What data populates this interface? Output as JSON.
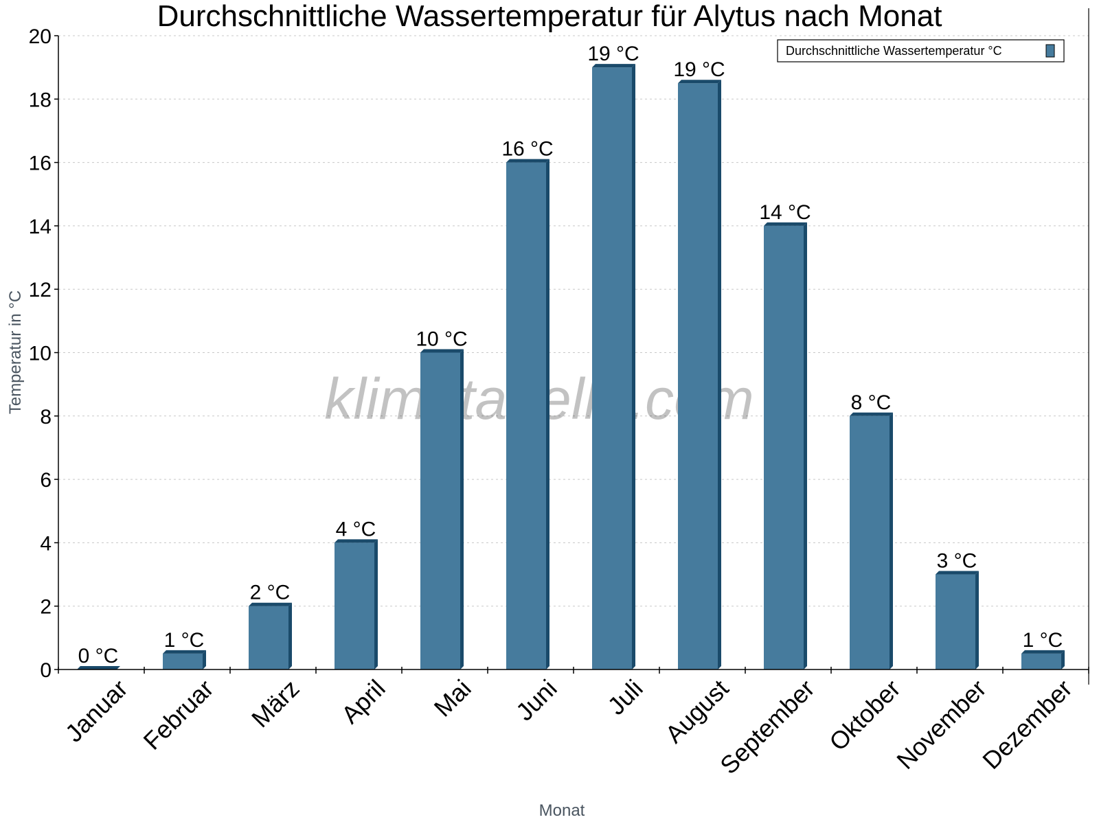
{
  "chart_data": {
    "type": "bar",
    "title": "Durchschnittliche Wassertemperatur für Alytus nach Monat",
    "xlabel": "Monat",
    "ylabel": "Temperatur in °C",
    "ylim": [
      0,
      20
    ],
    "yticks": [
      0,
      2,
      4,
      6,
      8,
      10,
      12,
      14,
      16,
      18,
      20
    ],
    "grid": true,
    "legend_position": "top-right",
    "categories": [
      "Januar",
      "Februar",
      "März",
      "April",
      "Mai",
      "Juni",
      "Juli",
      "August",
      "September",
      "Oktober",
      "November",
      "Dezember"
    ],
    "series": [
      {
        "name": "Durchschnittliche Wassertemperatur °C",
        "values": [
          0,
          0.5,
          2,
          4,
          10,
          16,
          19,
          18.5,
          14,
          8,
          3,
          0.5
        ],
        "labels": [
          "0 °C",
          "1 °C",
          "2 °C",
          "4 °C",
          "10 °C",
          "16 °C",
          "19 °C",
          "19 °C",
          "14 °C",
          "8 °C",
          "3 °C",
          "1 °C"
        ]
      }
    ],
    "watermark": "klimatabelle.com"
  },
  "colors": {
    "bar_front": "#467b9d",
    "bar_side": "#1a4a6a",
    "grid": "#c8c8c8",
    "axis": "#000000"
  }
}
